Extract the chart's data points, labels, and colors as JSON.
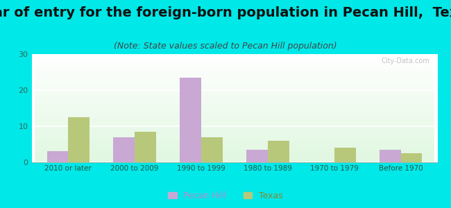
{
  "title": "Year of entry for the foreign-born population in Pecan Hill,  Texas",
  "subtitle": "(Note: State values scaled to Pecan Hill population)",
  "categories": [
    "2010 or later",
    "2000 to 2009",
    "1990 to 1999",
    "1980 to 1989",
    "1970 to 1979",
    "Before 1970"
  ],
  "pecan_hill": [
    3,
    7,
    23.5,
    3.5,
    0,
    3.5
  ],
  "texas": [
    12.5,
    8.5,
    7,
    6,
    4,
    2.5
  ],
  "pecan_hill_color": "#c9a8d4",
  "texas_color": "#b8c87a",
  "ylim": [
    0,
    30
  ],
  "yticks": [
    0,
    10,
    20,
    30
  ],
  "bar_width": 0.32,
  "outer_bg": "#00e8e8",
  "title_fontsize": 14,
  "subtitle_fontsize": 9,
  "legend_labels": [
    "Pecan Hill",
    "Texas"
  ],
  "watermark": "City-Data.com",
  "tick_color": "#336655",
  "label_color": "#225544"
}
